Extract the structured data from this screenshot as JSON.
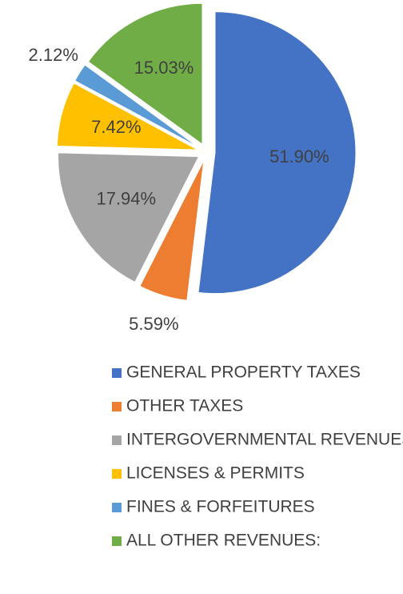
{
  "chart_data": {
    "type": "pie",
    "categories": [
      "GENERAL PROPERTY TAXES",
      "OTHER TAXES",
      "INTERGOVERNMENTAL REVENUES",
      "LICENSES & PERMITS",
      "FINES & FORFEITURES",
      "ALL OTHER REVENUES:"
    ],
    "values": [
      51.9,
      5.59,
      17.94,
      7.42,
      2.12,
      15.03
    ],
    "value_labels": [
      "51.90%",
      "5.59%",
      "17.94%",
      "7.42%",
      "2.12%",
      "15.03%"
    ],
    "colors": [
      "#4472c4",
      "#ed7d31",
      "#a5a5a5",
      "#ffc000",
      "#5b9bd5",
      "#70ad47"
    ],
    "legend": "bottom"
  }
}
